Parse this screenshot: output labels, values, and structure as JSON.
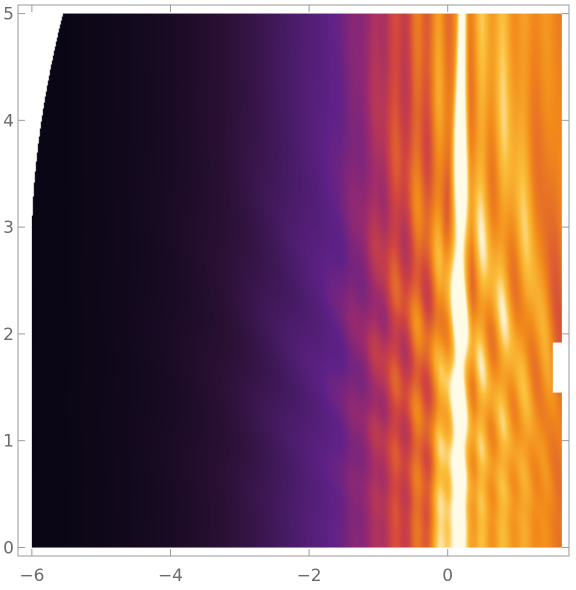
{
  "chart_data": {
    "type": "heatmap",
    "title": "",
    "xlabel": "",
    "ylabel": "",
    "xlim": [
      -6.2,
      1.75
    ],
    "ylim": [
      -0.08,
      5.08
    ],
    "data_x_range": [
      -6.0,
      1.65
    ],
    "data_y_range": [
      0,
      5
    ],
    "x_ticks": [
      {
        "value": -6,
        "label": "−6"
      },
      {
        "value": -4,
        "label": "−4"
      },
      {
        "value": -2,
        "label": "−2"
      },
      {
        "value": 0,
        "label": "0"
      }
    ],
    "y_ticks": [
      {
        "value": 0,
        "label": "0"
      },
      {
        "value": 1,
        "label": "1"
      },
      {
        "value": 2,
        "label": "2"
      },
      {
        "value": 3,
        "label": "3"
      },
      {
        "value": 4,
        "label": "4"
      },
      {
        "value": 5,
        "label": "5"
      }
    ],
    "colormap": "inferno-like",
    "colormap_stops": [
      {
        "pos": 0.0,
        "color": "#070512"
      },
      {
        "pos": 0.22,
        "color": "#2a1034"
      },
      {
        "pos": 0.42,
        "color": "#4b1c6b"
      },
      {
        "pos": 0.55,
        "color": "#5f2188"
      },
      {
        "pos": 0.68,
        "color": "#9b2a6e"
      },
      {
        "pos": 0.78,
        "color": "#d2453f"
      },
      {
        "pos": 0.88,
        "color": "#f28a1a"
      },
      {
        "pos": 0.95,
        "color": "#fbbf3a"
      },
      {
        "pos": 1.0,
        "color": "#fffbe6"
      }
    ],
    "white_regions": [
      "missing data along the left edge, widening toward the top",
      "small missing patch on the right edge near y = 1.5–1.9"
    ],
    "grid": false,
    "frame": true
  }
}
